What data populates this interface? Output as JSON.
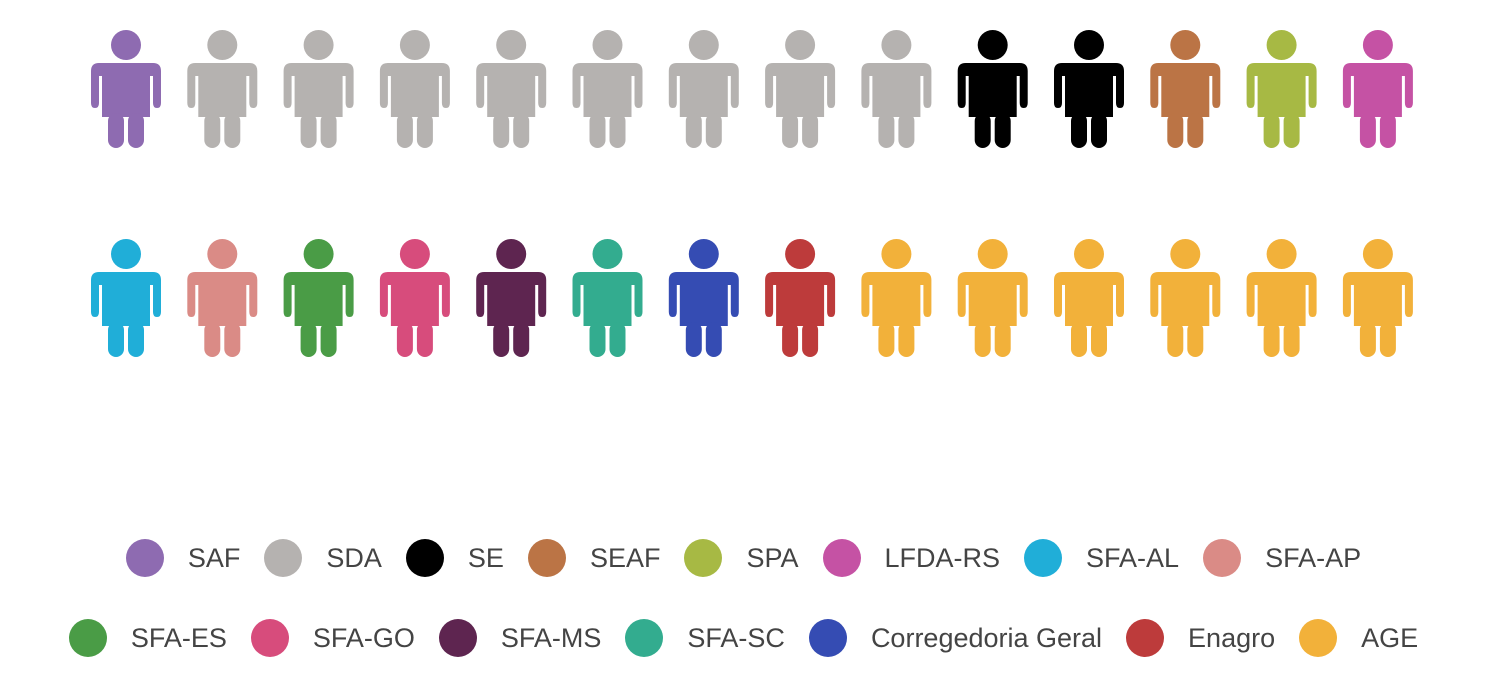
{
  "chart_data": {
    "type": "pictogram",
    "unit": "person-icon",
    "series": [
      {
        "name": "SAF",
        "count": 1,
        "color": "#8e6bb1"
      },
      {
        "name": "SDA",
        "count": 8,
        "color": "#b5b2b0"
      },
      {
        "name": "SE",
        "count": 2,
        "color": "#000000"
      },
      {
        "name": "SEAF",
        "count": 1,
        "color": "#bb7445"
      },
      {
        "name": "SPA",
        "count": 1,
        "color": "#a7b944"
      },
      {
        "name": "LFDA-RS",
        "count": 1,
        "color": "#c552a4"
      },
      {
        "name": "SFA-AL",
        "count": 1,
        "color": "#20aed8"
      },
      {
        "name": "SFA-AP",
        "count": 1,
        "color": "#da8b86"
      },
      {
        "name": "SFA-ES",
        "count": 1,
        "color": "#4a9c46"
      },
      {
        "name": "SFA-GO",
        "count": 1,
        "color": "#d74c7c"
      },
      {
        "name": "SFA-MS",
        "count": 1,
        "color": "#5e2550"
      },
      {
        "name": "SFA-SC",
        "count": 1,
        "color": "#33ac8f"
      },
      {
        "name": "Corregedoria Geral",
        "count": 1,
        "color": "#354cb3"
      },
      {
        "name": "Enagro",
        "count": 1,
        "color": "#bd3b3b"
      },
      {
        "name": "AGE",
        "count": 6,
        "color": "#f2b13a"
      }
    ],
    "total": 28,
    "icons_per_row": 14,
    "legend_position": "bottom",
    "legend_rows": [
      [
        "SAF",
        "SDA",
        "SE",
        "SEAF",
        "SPA",
        "LFDA-RS",
        "SFA-AL",
        "SFA-AP"
      ],
      [
        "SFA-ES",
        "SFA-GO",
        "SFA-MS",
        "SFA-SC",
        "Corregedoria Geral",
        "Enagro",
        "AGE"
      ]
    ]
  }
}
